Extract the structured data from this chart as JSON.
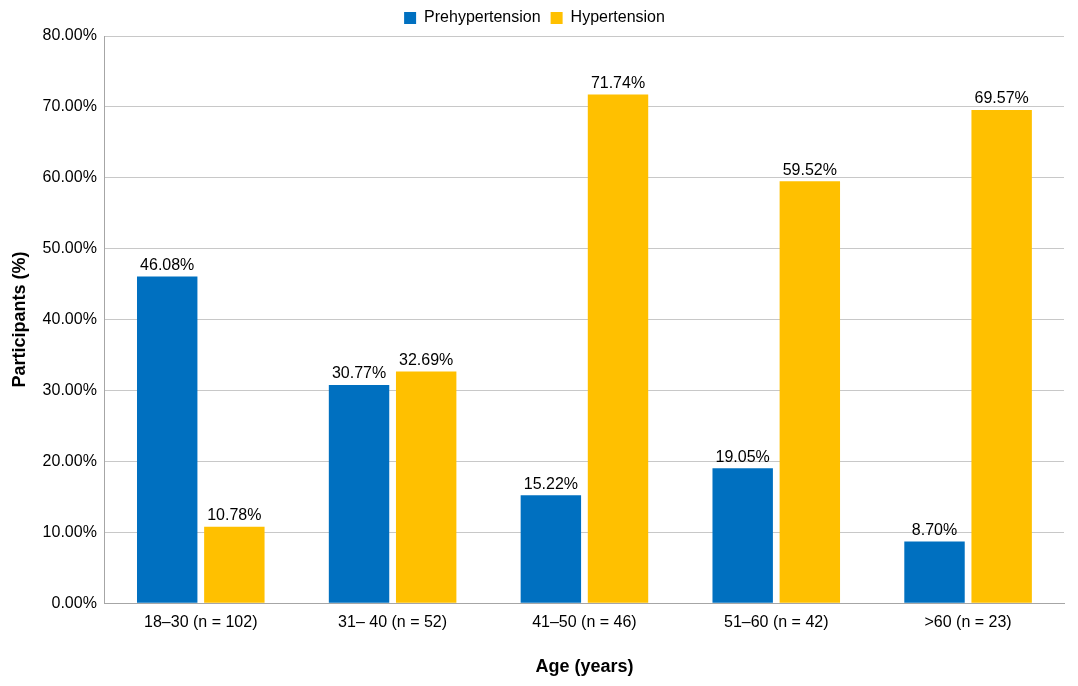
{
  "chart_data": {
    "type": "bar",
    "xlabel": "Age (years)",
    "ylabel": "Participants (%)",
    "categories": [
      "18–30 (n = 102)",
      "31– 40 (n = 52)",
      "41–50 (n = 46)",
      "51–60 (n = 42)",
      ">60 (n = 23)"
    ],
    "series": [
      {
        "name": "Prehypertension",
        "color": "#0070c0",
        "values": [
          46.08,
          30.77,
          15.22,
          19.05,
          8.7
        ],
        "value_labels": [
          "46.08%",
          "30.77%",
          "15.22%",
          "19.05%",
          "8.70%"
        ]
      },
      {
        "name": "Hypertension",
        "color": "#ffc000",
        "values": [
          10.78,
          32.69,
          71.74,
          59.52,
          69.57
        ],
        "value_labels": [
          "10.78%",
          "32.69%",
          "71.74%",
          "59.52%",
          "69.57%"
        ]
      }
    ],
    "ylim": [
      0,
      80
    ],
    "yticks": [
      {
        "value": 0,
        "label": "0.00%"
      },
      {
        "value": 10,
        "label": "10.00%"
      },
      {
        "value": 20,
        "label": "20.00%"
      },
      {
        "value": 30,
        "label": "30.00%"
      },
      {
        "value": 40,
        "label": "40.00%"
      },
      {
        "value": 50,
        "label": "50.00%"
      },
      {
        "value": 60,
        "label": "60.00%"
      },
      {
        "value": 70,
        "label": "70.00%"
      },
      {
        "value": 80,
        "label": "80.00%"
      }
    ],
    "grid": "y",
    "legend": "top"
  }
}
